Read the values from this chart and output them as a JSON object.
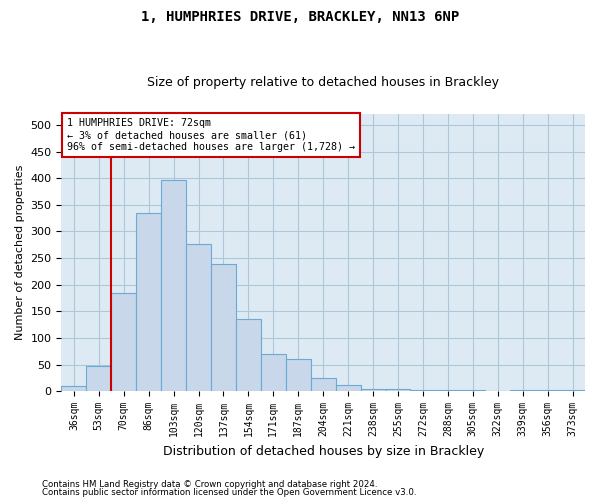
{
  "title1": "1, HUMPHRIES DRIVE, BRACKLEY, NN13 6NP",
  "title2": "Size of property relative to detached houses in Brackley",
  "xlabel": "Distribution of detached houses by size in Brackley",
  "ylabel": "Number of detached properties",
  "bar_color": "#c8d8ea",
  "bar_edge_color": "#6aaad4",
  "grid_color": "#aec6d8",
  "bg_color": "#ddeaf4",
  "vline_color": "#cc0000",
  "annotation_text_line1": "1 HUMPHRIES DRIVE: 72sqm",
  "annotation_text_line2": "← 3% of detached houses are smaller (61)",
  "annotation_text_line3": "96% of semi-detached houses are larger (1,728) →",
  "footnote1": "Contains HM Land Registry data © Crown copyright and database right 2024.",
  "footnote2": "Contains public sector information licensed under the Open Government Licence v3.0.",
  "categories": [
    "36sqm",
    "53sqm",
    "70sqm",
    "86sqm",
    "103sqm",
    "120sqm",
    "137sqm",
    "154sqm",
    "171sqm",
    "187sqm",
    "204sqm",
    "221sqm",
    "238sqm",
    "255sqm",
    "272sqm",
    "288sqm",
    "305sqm",
    "322sqm",
    "339sqm",
    "356sqm",
    "373sqm"
  ],
  "bar_heights": [
    10,
    47,
    185,
    335,
    397,
    276,
    238,
    136,
    70,
    61,
    25,
    12,
    5,
    5,
    3,
    3,
    2,
    1,
    2,
    2,
    3
  ],
  "ylim": [
    0,
    520
  ],
  "yticks": [
    0,
    50,
    100,
    150,
    200,
    250,
    300,
    350,
    400,
    450,
    500
  ],
  "vline_pos": 1.5
}
